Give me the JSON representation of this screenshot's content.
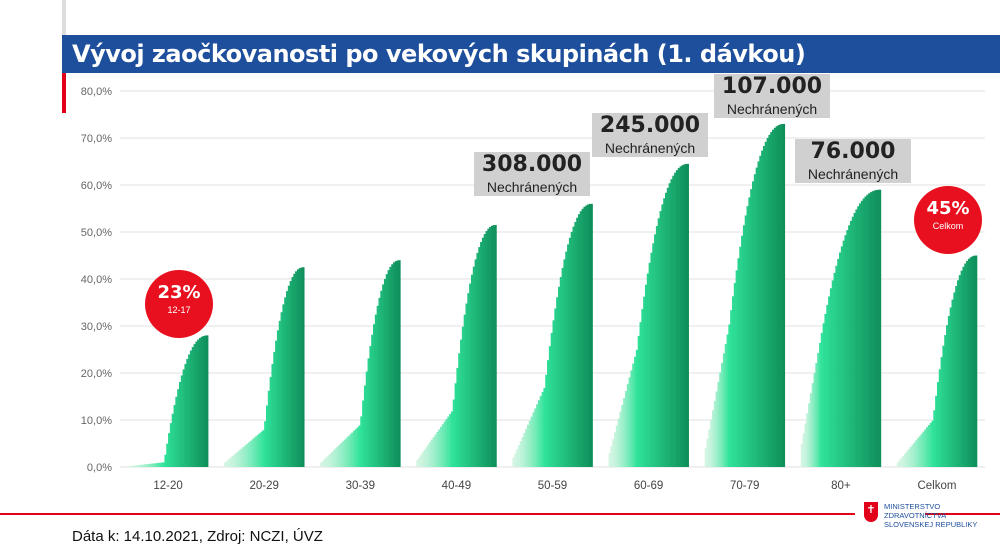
{
  "title": "Vývoj zaočkovanosti po vekových skupinách (1. dávkou)",
  "footer": "Dáta k: 14.10.2021, Zdroj: NCZI, ÚVZ",
  "logo": {
    "line1": "MINISTERSTVO",
    "line2": "ZDRAVOTNÍCTVA",
    "line3": "SLOVENSKEJ REPUBLIKY"
  },
  "colors": {
    "title_bg": "#1d4f9c",
    "accent": "#e2001a",
    "bar_light": "#d4f5e2",
    "bar_mid": "#2fe39a",
    "bar_dark": "#0f8f5a"
  },
  "annotations": [
    {
      "value": "308.000",
      "sub": "Nechránených"
    },
    {
      "value": "245.000",
      "sub": "Nechránených"
    },
    {
      "value": "107.000",
      "sub": "Nechránených"
    },
    {
      "value": "76.000",
      "sub": "Nechránených"
    }
  ],
  "badges": [
    {
      "pct": "23%",
      "sub": "12-17"
    },
    {
      "pct": "45%",
      "sub": "Celkom"
    }
  ],
  "chart_data": {
    "type": "bar",
    "title": "Vývoj zaočkovanosti po vekových skupinách (1. dávkou)",
    "ylim": [
      0,
      80
    ],
    "yticks": [
      "0,0%",
      "10,0%",
      "20,0%",
      "30,0%",
      "40,0%",
      "50,0%",
      "60,0%",
      "70,0%",
      "80,0%"
    ],
    "categories": [
      "12-20",
      "20-29",
      "30-39",
      "40-49",
      "50-59",
      "60-69",
      "70-79",
      "80+",
      "Celkom"
    ],
    "series": [
      {
        "name": "12-20",
        "start": 0.2,
        "plateau": 1,
        "final": 28,
        "mid": 0.45
      },
      {
        "name": "20-29",
        "start": 1,
        "plateau": 8,
        "final": 42.5,
        "mid": 0.5
      },
      {
        "name": "30-39",
        "start": 1,
        "plateau": 9,
        "final": 44,
        "mid": 0.5
      },
      {
        "name": "40-49",
        "start": 1.5,
        "plateau": 12,
        "final": 51.5,
        "mid": 0.45
      },
      {
        "name": "50-59",
        "start": 2,
        "plateau": 17,
        "final": 56,
        "mid": 0.4
      },
      {
        "name": "60-69",
        "start": 3,
        "plateau": 25,
        "final": 64.5,
        "mid": 0.35
      },
      {
        "name": "70-79",
        "start": 4,
        "plateau": 30,
        "final": 73,
        "mid": 0.3
      },
      {
        "name": "80+",
        "start": 5,
        "plateau": 28,
        "final": 59,
        "mid": 0.25
      },
      {
        "name": "Celkom",
        "start": 1,
        "plateau": 10,
        "final": 45,
        "mid": 0.45
      }
    ]
  }
}
